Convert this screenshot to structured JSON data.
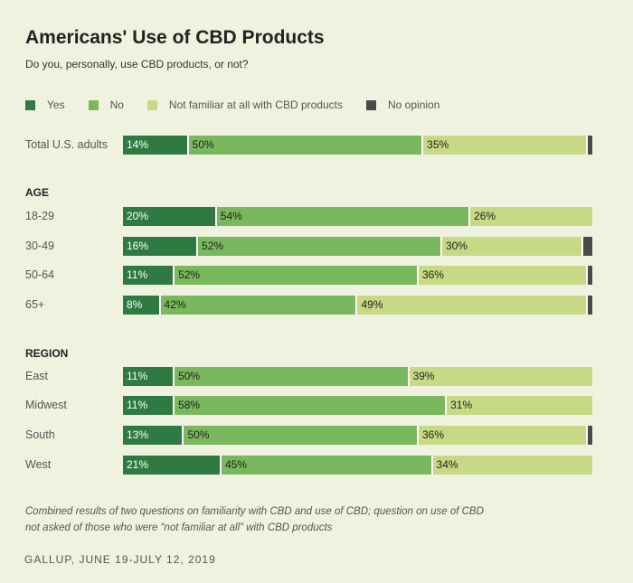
{
  "chart_data": {
    "type": "bar",
    "orientation": "horizontal-stacked",
    "title": "Americans' Use of CBD Products",
    "subtitle": "Do you, personally, use CBD products, or not?",
    "legend": [
      {
        "key": "yes",
        "name": "Yes",
        "color": "#2f7a43"
      },
      {
        "key": "no",
        "name": "No",
        "color": "#79b85d"
      },
      {
        "key": "nf",
        "name": "Not familiar at all with CBD products",
        "color": "#c8d985"
      },
      {
        "key": "nop",
        "name": "No opinion",
        "color": "#4a4a4a"
      }
    ],
    "legend_placement": "top",
    "groups": [
      {
        "header": "",
        "rows": [
          {
            "label": "Total U.S. adults",
            "yes": 14,
            "no": 50,
            "nf": 35
          }
        ]
      },
      {
        "header": "AGE",
        "rows": [
          {
            "label": "18-29",
            "yes": 20,
            "no": 54,
            "nf": 26
          },
          {
            "label": "30-49",
            "yes": 16,
            "no": 52,
            "nf": 30
          },
          {
            "label": "50-64",
            "yes": 11,
            "no": 52,
            "nf": 36
          },
          {
            "label": "65+",
            "yes": 8,
            "no": 42,
            "nf": 49
          }
        ]
      },
      {
        "header": "REGION",
        "rows": [
          {
            "label": "East",
            "yes": 11,
            "no": 50,
            "nf": 39
          },
          {
            "label": "Midwest",
            "yes": 11,
            "no": 58,
            "nf": 31
          },
          {
            "label": "South",
            "yes": 13,
            "no": 50,
            "nf": 36
          },
          {
            "label": "West",
            "yes": 21,
            "no": 45,
            "nf": 34
          }
        ]
      }
    ],
    "unit": "%"
  },
  "note": "Combined results of two questions on familiarity with CBD and use of CBD; question on use of CBD not asked of those who were “not familiar at all” with CBD products",
  "source": "GALLUP, JUNE 19-JULY 12, 2019"
}
